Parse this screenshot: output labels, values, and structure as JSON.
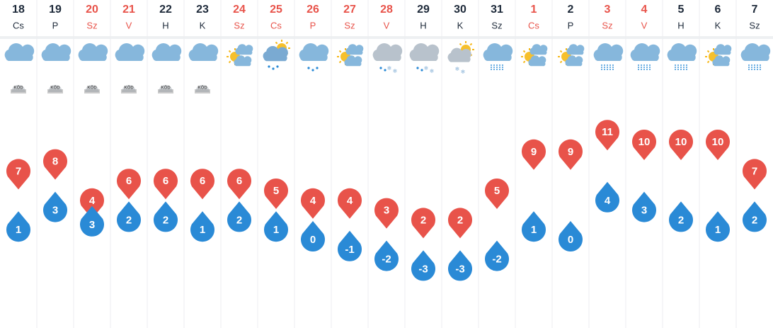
{
  "chart_data": {
    "type": "forecast",
    "categories": [
      "18",
      "19",
      "20",
      "21",
      "22",
      "23",
      "24",
      "25",
      "26",
      "27",
      "28",
      "29",
      "30",
      "31",
      "1",
      "2",
      "3",
      "4",
      "5",
      "6",
      "7"
    ],
    "weekdays": [
      "Cs",
      "P",
      "Sz",
      "V",
      "H",
      "K",
      "Sz",
      "Cs",
      "P",
      "Sz",
      "V",
      "H",
      "K",
      "Sz",
      "Cs",
      "P",
      "Sz",
      "V",
      "H",
      "K",
      "Sz"
    ],
    "fog_labels": [
      "KÖD",
      "KÖD",
      "KÖD",
      "KÖD",
      "KÖD",
      "KÖD",
      null,
      null,
      null,
      null,
      null,
      null,
      null,
      null,
      null,
      null,
      null,
      null,
      null,
      null,
      null
    ],
    "series": [
      {
        "color": "#e8534a",
        "values": [
          7,
          8,
          4,
          6,
          6,
          6,
          6,
          5,
          4,
          4,
          3,
          2,
          2,
          5,
          9,
          9,
          11,
          10,
          10,
          10,
          7
        ]
      },
      {
        "color": "#2a8ad6",
        "values": [
          1,
          3,
          3,
          2,
          2,
          1,
          2,
          1,
          0,
          -1,
          -2,
          -3,
          -3,
          -2,
          1,
          0,
          4,
          3,
          2,
          1,
          2
        ]
      }
    ]
  }
}
